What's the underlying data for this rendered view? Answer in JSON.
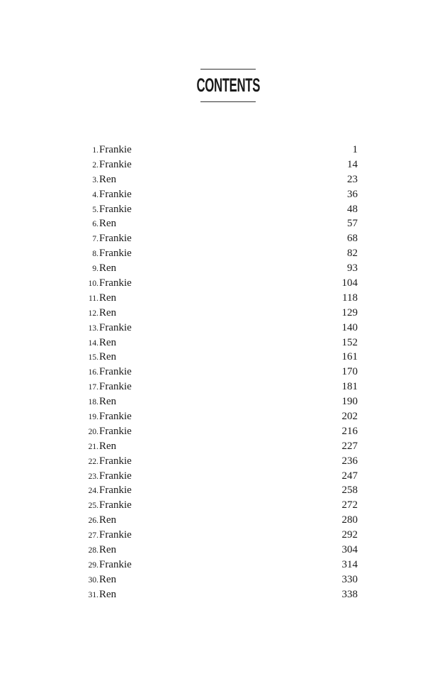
{
  "title": "CONTENTS",
  "entries": [
    {
      "num": "1.",
      "title": "Frankie",
      "page": "1"
    },
    {
      "num": "2.",
      "title": "Frankie",
      "page": "14"
    },
    {
      "num": "3.",
      "title": "Ren",
      "page": "23"
    },
    {
      "num": "4.",
      "title": "Frankie",
      "page": "36"
    },
    {
      "num": "5.",
      "title": "Frankie",
      "page": "48"
    },
    {
      "num": "6.",
      "title": "Ren",
      "page": "57"
    },
    {
      "num": "7.",
      "title": "Frankie",
      "page": "68"
    },
    {
      "num": "8.",
      "title": "Frankie",
      "page": "82"
    },
    {
      "num": "9.",
      "title": "Ren",
      "page": "93"
    },
    {
      "num": "10.",
      "title": "Frankie",
      "page": "104"
    },
    {
      "num": "11.",
      "title": "Ren",
      "page": "118"
    },
    {
      "num": "12.",
      "title": "Ren",
      "page": "129"
    },
    {
      "num": "13.",
      "title": "Frankie",
      "page": "140"
    },
    {
      "num": "14.",
      "title": "Ren",
      "page": "152"
    },
    {
      "num": "15.",
      "title": "Ren",
      "page": "161"
    },
    {
      "num": "16.",
      "title": "Frankie",
      "page": "170"
    },
    {
      "num": "17.",
      "title": "Frankie",
      "page": "181"
    },
    {
      "num": "18.",
      "title": "Ren",
      "page": "190"
    },
    {
      "num": "19.",
      "title": "Frankie",
      "page": "202"
    },
    {
      "num": "20.",
      "title": "Frankie",
      "page": "216"
    },
    {
      "num": "21.",
      "title": "Ren",
      "page": "227"
    },
    {
      "num": "22.",
      "title": "Frankie",
      "page": "236"
    },
    {
      "num": "23.",
      "title": "Frankie",
      "page": "247"
    },
    {
      "num": "24.",
      "title": "Frankie",
      "page": "258"
    },
    {
      "num": "25.",
      "title": "Frankie",
      "page": "272"
    },
    {
      "num": "26.",
      "title": "Ren",
      "page": "280"
    },
    {
      "num": "27.",
      "title": "Frankie",
      "page": "292"
    },
    {
      "num": "28.",
      "title": "Ren",
      "page": "304"
    },
    {
      "num": "29.",
      "title": "Frankie",
      "page": "314"
    },
    {
      "num": "30.",
      "title": "Ren",
      "page": "330"
    },
    {
      "num": "31.",
      "title": "Ren",
      "page": "338"
    }
  ]
}
